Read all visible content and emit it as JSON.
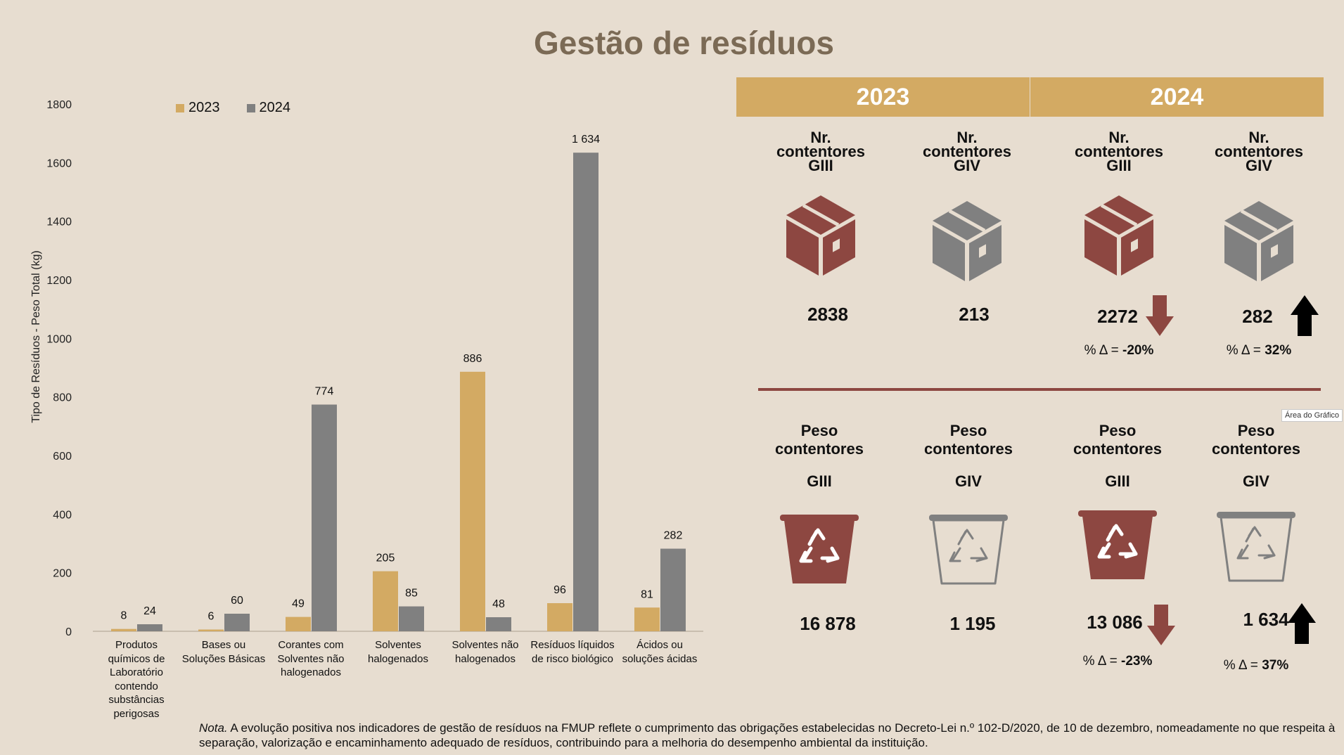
{
  "title": "Gestão de resíduos",
  "chart_data": {
    "type": "bar",
    "title": "",
    "ylabel": "Tipo de Resíduos - Peso Total (kg)",
    "xlabel": "",
    "ylim": [
      0,
      1800
    ],
    "yticks": [
      0,
      200,
      400,
      600,
      800,
      1000,
      1200,
      1400,
      1600,
      1800
    ],
    "categories": [
      "Produtos químicos de Laboratório contendo substâncias perigosas",
      "Bases ou Soluções Básicas",
      "Corantes com Solventes não halogenados",
      "Solventes halogenados",
      "Solventes não halogenados",
      "Resíduos líquidos de risco biológico",
      "Ácidos ou soluções ácidas"
    ],
    "category_lines": [
      [
        "Produtos",
        "químicos de",
        "Laboratório",
        "contendo",
        "substâncias",
        "perigosas"
      ],
      [
        "Bases ou",
        "Soluções Básicas"
      ],
      [
        "Corantes com",
        "Solventes não",
        "halogenados"
      ],
      [
        "Solventes",
        "halogenados"
      ],
      [
        "Solventes não",
        "halogenados"
      ],
      [
        "Resíduos líquidos",
        "de risco biológico"
      ],
      [
        "Ácidos ou",
        "soluções ácidas"
      ]
    ],
    "series": [
      {
        "name": "2023",
        "color": "#d3aa63",
        "values": [
          8,
          6,
          49,
          205,
          886,
          96,
          81
        ],
        "labels": [
          "8",
          "6",
          "49",
          "205",
          "886",
          "96",
          "81"
        ]
      },
      {
        "name": "2024",
        "color": "#808080",
        "values": [
          24,
          60,
          774,
          85,
          48,
          1634,
          282
        ],
        "labels": [
          "24",
          "60",
          "774",
          "85",
          "48",
          "1 634",
          "282"
        ]
      }
    ],
    "legend": "top-left"
  },
  "years": [
    "2023",
    "2024"
  ],
  "containers": [
    {
      "head": [
        "Nr.",
        "contentores",
        "GIII"
      ],
      "value": "2838",
      "color": "#8d4741"
    },
    {
      "head": [
        "Nr.",
        "contentores",
        "GIV"
      ],
      "value": "213",
      "color": "#808080"
    },
    {
      "head": [
        "Nr.",
        "contentores",
        "GIII"
      ],
      "value": "2272",
      "color": "#8d4741",
      "arrow": "down",
      "delta_prefix": "% Δ = ",
      "delta": "-20%"
    },
    {
      "head": [
        "Nr.",
        "contentores",
        "GIV"
      ],
      "value": "282",
      "color": "#808080",
      "arrow": "up",
      "delta_prefix": "% Δ = ",
      "delta": "32%"
    }
  ],
  "weights": [
    {
      "head": [
        "Peso",
        "contentores",
        "GIII"
      ],
      "value": "16 878",
      "filled": true
    },
    {
      "head": [
        "Peso",
        "contentores",
        "GIV"
      ],
      "value": "1 195",
      "filled": false
    },
    {
      "head": [
        "Peso",
        "contentores",
        "GIII"
      ],
      "value": "13 086",
      "filled": true,
      "arrow": "down",
      "delta_prefix": "% Δ = ",
      "delta": "-23%"
    },
    {
      "head": [
        "Peso",
        "contentores",
        "GIV"
      ],
      "value": "1 634",
      "filled": false,
      "arrow": "up",
      "delta_prefix": "% Δ = ",
      "delta": "37%"
    }
  ],
  "tooltip": "Área do Gráfico",
  "note": {
    "label": "Nota.",
    "text": " A evolução positiva nos indicadores de gestão de resíduos na FMUP reflete o cumprimento das obrigações estabelecidas no Decreto-Lei n.º 102-D/2020, de 10 de dezembro, nomeadamente no que respeita à separação, valorização e encaminhamento adequado de resíduos, contribuindo para a melhoria do desempenho ambiental da instituição."
  },
  "colors": {
    "gold": "#d3aa63",
    "grey": "#808080",
    "maroon": "#8d4741",
    "title": "#7b6a55",
    "background": "#e7ddd0"
  }
}
